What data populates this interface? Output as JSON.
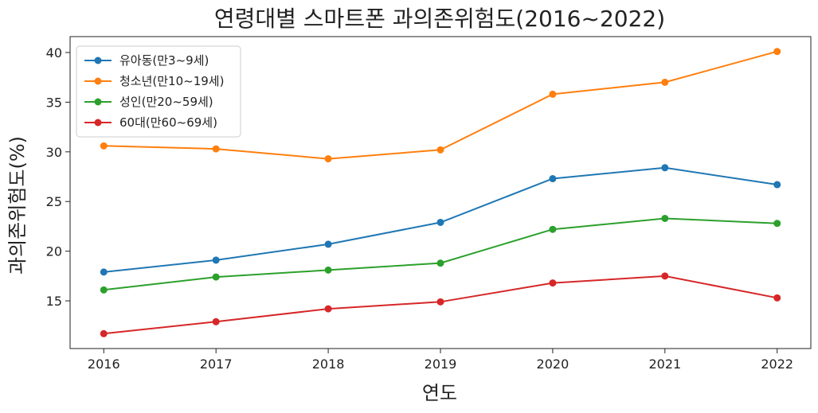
{
  "chart_data": {
    "type": "line",
    "title": "연령대별 스마트폰 과의존위험도(2016~2022)",
    "xlabel": "연도",
    "ylabel": "과의존위험도(%)",
    "x": [
      2016,
      2017,
      2018,
      2019,
      2020,
      2021,
      2022
    ],
    "x_ticks": [
      "2016",
      "2017",
      "2018",
      "2019",
      "2020",
      "2021",
      "2022"
    ],
    "y_ticks": [
      15,
      20,
      25,
      30,
      35,
      40
    ],
    "ylim": [
      10.2,
      41.6
    ],
    "xlim": [
      2015.7,
      2022.3
    ],
    "grid": false,
    "legend_position": "top-left",
    "series": [
      {
        "name": "유아동(만3~9세)",
        "color": "#1f77b4",
        "values": [
          17.9,
          19.1,
          20.7,
          22.9,
          27.3,
          28.4,
          26.7
        ]
      },
      {
        "name": "청소년(만10~19세)",
        "color": "#ff7f0e",
        "values": [
          30.6,
          30.3,
          29.3,
          30.2,
          35.8,
          37.0,
          40.1
        ]
      },
      {
        "name": "성인(만20~59세)",
        "color": "#2ca02c",
        "values": [
          16.1,
          17.4,
          18.1,
          18.8,
          22.2,
          23.3,
          22.8
        ]
      },
      {
        "name": "60대(만60~69세)",
        "color": "#d62728",
        "values": [
          11.7,
          12.9,
          14.2,
          14.9,
          16.8,
          17.5,
          15.3
        ]
      }
    ]
  }
}
